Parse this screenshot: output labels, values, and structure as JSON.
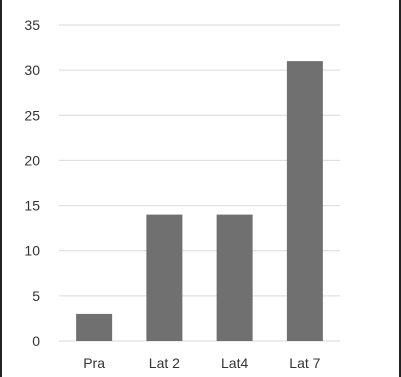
{
  "chart_data": {
    "type": "bar",
    "title": "",
    "xlabel": "",
    "ylabel": "",
    "categories": [
      "Pra",
      "Lat 2",
      "Lat4",
      "Lat 7"
    ],
    "values": [
      3,
      14,
      14,
      31
    ],
    "ylim": [
      0,
      35
    ],
    "yticks": [
      0,
      5,
      10,
      15,
      20,
      25,
      30,
      35
    ],
    "grid": true,
    "legend": "none",
    "colors": {
      "bar": "#707070",
      "grid": "#d9d9d9",
      "text": "#333333"
    }
  }
}
